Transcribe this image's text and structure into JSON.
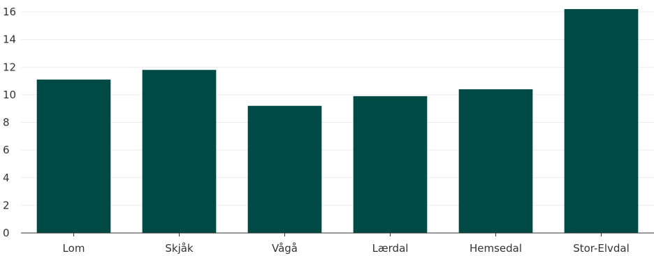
{
  "chart_data": {
    "type": "bar",
    "categories": [
      "Lom",
      "Skjåk",
      "Vågå",
      "Lærdal",
      "Hemsedal",
      "Stor-Elvdal"
    ],
    "values": [
      11.1,
      11.8,
      9.2,
      9.9,
      10.4,
      16.2
    ],
    "title": "",
    "xlabel": "",
    "ylabel": "",
    "ylim": [
      0,
      16
    ],
    "yticks": [
      0,
      2,
      4,
      6,
      8,
      10,
      12,
      14,
      16
    ],
    "grid": "horizontal",
    "bar_color": "#004a45"
  }
}
